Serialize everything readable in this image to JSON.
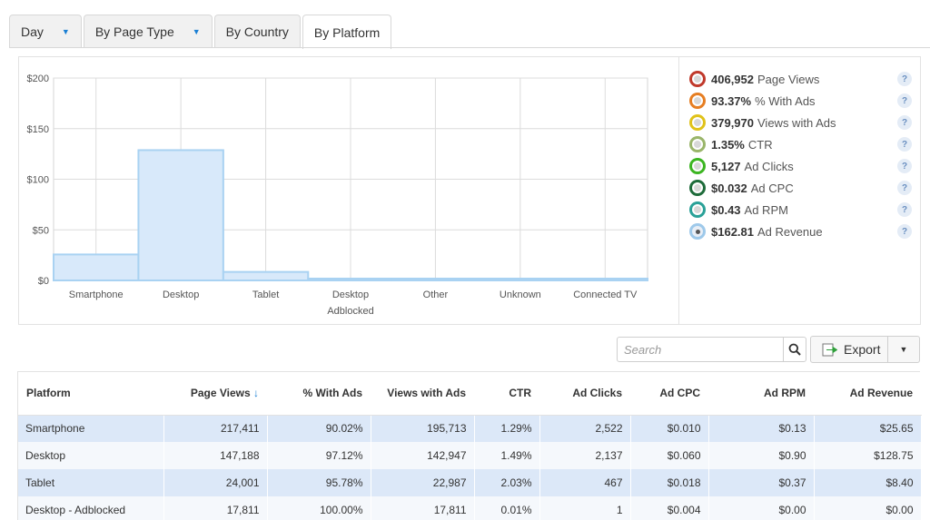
{
  "tabs": [
    {
      "label": "Day",
      "has_dropdown": true
    },
    {
      "label": "By Page Type",
      "has_dropdown": true
    },
    {
      "label": "By Country",
      "has_dropdown": false
    },
    {
      "label": "By Platform",
      "has_dropdown": false,
      "active": true
    }
  ],
  "chart_data": {
    "type": "bar",
    "title": "",
    "xlabel": "",
    "ylabel": "",
    "categories": [
      "Smartphone",
      "Desktop",
      "Tablet",
      "Desktop Adblocked",
      "Other",
      "Unknown",
      "Connected TV"
    ],
    "category_lines": [
      [
        "Smartphone"
      ],
      [
        "Desktop"
      ],
      [
        "Tablet"
      ],
      [
        "Desktop",
        "Adblocked"
      ],
      [
        "Other"
      ],
      [
        "Unknown"
      ],
      [
        "Connected TV"
      ]
    ],
    "values": [
      25.65,
      128.75,
      8.4,
      0.0,
      0.0,
      0.0,
      0.0
    ],
    "ylim": [
      0,
      200
    ],
    "yticks": [
      0,
      50,
      100,
      150,
      200
    ],
    "ytick_labels": [
      "$0",
      "$50",
      "$100",
      "$150",
      "$200"
    ],
    "grid": true,
    "bar_color": "#d8e9fa",
    "bar_border": "#a9d2f2"
  },
  "stats": [
    {
      "value": "406,952",
      "label": "Page Views",
      "color": "#c0392b"
    },
    {
      "value": "93.37%",
      "label": "% With Ads",
      "color": "#e67e22"
    },
    {
      "value": "379,970",
      "label": "Views with Ads",
      "color": "#e0c21a"
    },
    {
      "value": "1.35%",
      "label": "CTR",
      "color": "#9ab56a"
    },
    {
      "value": "5,127",
      "label": "Ad Clicks",
      "color": "#3cb521"
    },
    {
      "value": "$0.032",
      "label": "Ad CPC",
      "color": "#1e6b3a"
    },
    {
      "value": "$0.43",
      "label": "Ad RPM",
      "color": "#2aa198"
    },
    {
      "value": "$162.81",
      "label": "Ad Revenue",
      "color": "#9ec9ea"
    }
  ],
  "help_glyph": "?",
  "search": {
    "placeholder": "Search",
    "icon": "search-icon"
  },
  "export": {
    "label": "Export",
    "icon": "export-icon"
  },
  "table": {
    "columns": [
      "Platform",
      "Page Views",
      "% With Ads",
      "Views with Ads",
      "CTR",
      "Ad Clicks",
      "Ad CPC",
      "Ad RPM",
      "Ad Revenue"
    ],
    "sort_glyph": "↓",
    "rows": [
      [
        "Smartphone",
        "217,411",
        "90.02%",
        "195,713",
        "1.29%",
        "2,522",
        "$0.010",
        "$0.13",
        "$25.65"
      ],
      [
        "Desktop",
        "147,188",
        "97.12%",
        "142,947",
        "1.49%",
        "2,137",
        "$0.060",
        "$0.90",
        "$128.75"
      ],
      [
        "Tablet",
        "24,001",
        "95.78%",
        "22,987",
        "2.03%",
        "467",
        "$0.018",
        "$0.37",
        "$8.40"
      ],
      [
        "Desktop - Adblocked",
        "17,811",
        "100.00%",
        "17,811",
        "0.01%",
        "1",
        "$0.004",
        "$0.00",
        "$0.00"
      ]
    ]
  }
}
